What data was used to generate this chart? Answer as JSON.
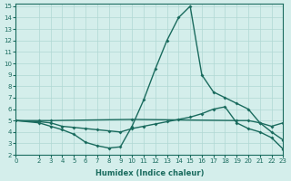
{
  "xlabel": "Humidex (Indice chaleur)",
  "xlim": [
    0,
    23
  ],
  "ylim": [
    2,
    15.2
  ],
  "yticks": [
    2,
    3,
    4,
    5,
    6,
    7,
    8,
    9,
    10,
    11,
    12,
    13,
    14,
    15
  ],
  "xticks": [
    0,
    2,
    3,
    4,
    5,
    6,
    7,
    8,
    9,
    10,
    11,
    12,
    13,
    14,
    15,
    16,
    17,
    18,
    19,
    20,
    21,
    22,
    23
  ],
  "color": "#1a6b5e",
  "bg_color": "#d4eeeb",
  "grid_color": "#b0d8d3",
  "line1_x": [
    0,
    2,
    3,
    4,
    5,
    6,
    7,
    8,
    9,
    10,
    11,
    12,
    13,
    14,
    15,
    16,
    17,
    18,
    19,
    20,
    21,
    22,
    23
  ],
  "line1_y": [
    5.0,
    4.8,
    4.5,
    4.2,
    3.8,
    3.1,
    2.8,
    2.6,
    2.7,
    4.5,
    6.8,
    9.5,
    12.0,
    14.0,
    15.0,
    9.0,
    7.5,
    7.0,
    6.5,
    6.0,
    4.8,
    4.0,
    3.3
  ],
  "line2_x": [
    0,
    2,
    3,
    4,
    5,
    6,
    7,
    8,
    9,
    10,
    11,
    12,
    13,
    14,
    15,
    16,
    17,
    18,
    19,
    20,
    21,
    22,
    23
  ],
  "line2_y": [
    5.0,
    4.9,
    4.8,
    4.5,
    4.4,
    4.3,
    4.2,
    4.1,
    4.0,
    4.3,
    4.5,
    4.7,
    4.9,
    5.1,
    5.3,
    5.6,
    6.0,
    6.2,
    4.8,
    4.3,
    4.0,
    3.5,
    2.5
  ],
  "line3_x": [
    0,
    2,
    3,
    10,
    19,
    20,
    21,
    22,
    23
  ],
  "line3_y": [
    5.0,
    5.0,
    5.0,
    5.1,
    5.0,
    5.0,
    4.8,
    4.5,
    4.8
  ]
}
